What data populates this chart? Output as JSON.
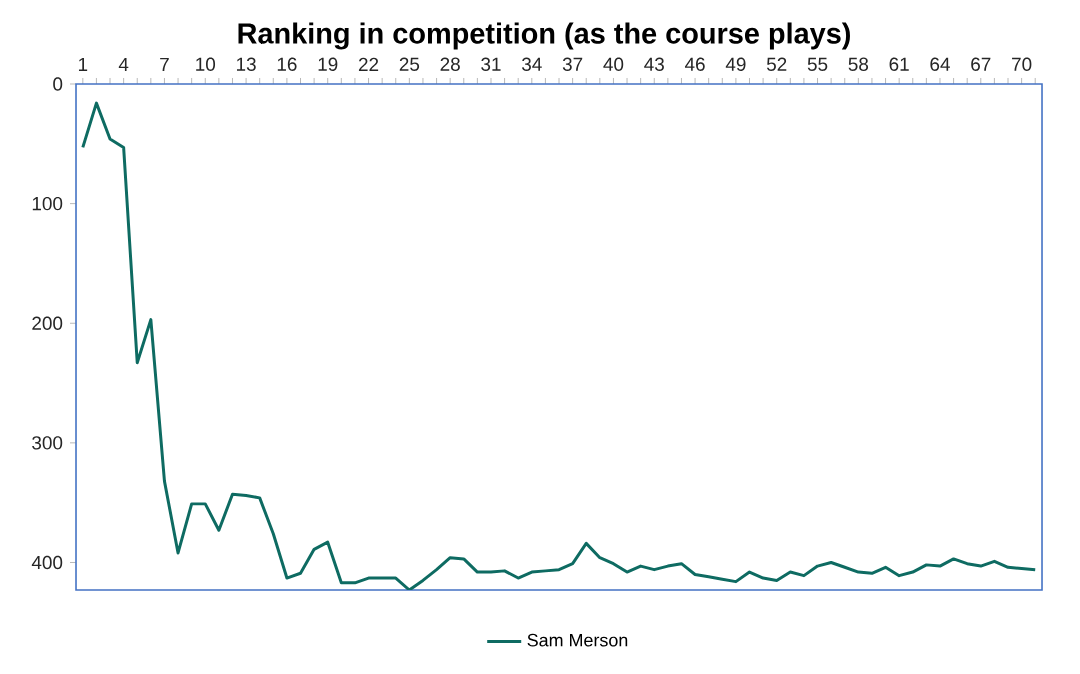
{
  "chart_data": {
    "type": "line",
    "title": "Ranking in competition (as the course plays)",
    "categories": [
      "1",
      null,
      null,
      "4",
      null,
      null,
      "7",
      null,
      null,
      "10",
      null,
      null,
      "13",
      null,
      null,
      "16",
      null,
      null,
      "19",
      null,
      null,
      "22",
      null,
      null,
      "25",
      null,
      null,
      "28",
      null,
      null,
      "31",
      null,
      null,
      "34",
      null,
      null,
      "37",
      null,
      null,
      "40",
      null,
      null,
      "43",
      null,
      null,
      "46",
      null,
      null,
      "49",
      null,
      null,
      "52",
      null,
      null,
      "55",
      null,
      null,
      "58",
      null,
      null,
      "61",
      null,
      null,
      "64",
      null,
      null,
      "67",
      null,
      null,
      "70",
      null
    ],
    "series": [
      {
        "name": "Sam Merson",
        "color": "#0e6b62",
        "values": [
          53,
          16,
          46,
          53,
          233,
          197,
          332,
          392,
          351,
          351,
          373,
          343,
          344,
          346,
          376,
          413,
          409,
          389,
          383,
          417,
          417,
          413,
          413,
          413,
          423,
          415,
          406,
          396,
          397,
          408,
          408,
          407,
          413,
          408,
          407,
          406,
          401,
          384,
          396,
          401,
          408,
          403,
          406,
          403,
          401,
          410,
          412,
          414,
          416,
          408,
          413,
          415,
          408,
          411,
          403,
          400,
          404,
          408,
          409,
          404,
          411,
          408,
          402,
          403,
          397,
          401,
          403,
          399,
          404,
          405,
          406
        ]
      }
    ],
    "ylim": [
      423,
      0
    ],
    "yticks": [
      0,
      100,
      200,
      300,
      400
    ],
    "grid": false,
    "legend": "bottom",
    "marker": "none",
    "line_style": "solid"
  }
}
